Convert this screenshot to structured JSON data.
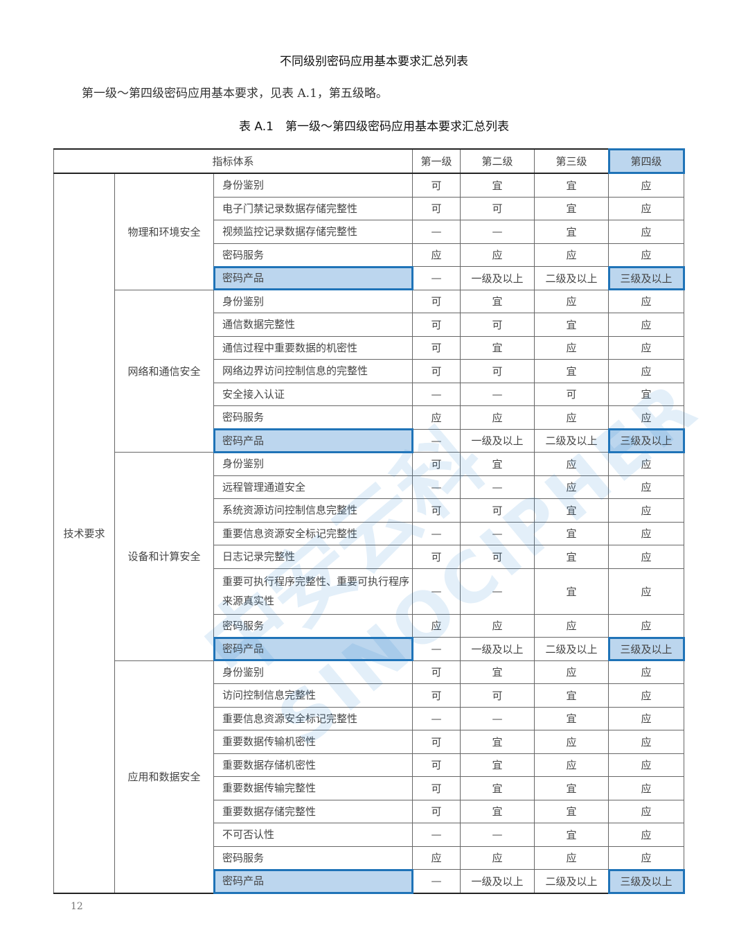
{
  "title": "不同级别密码应用基本要求汇总列表",
  "intro": "第一级～第四级密码应用基本要求，见表 A.1，第五级略。",
  "table_caption": "表 A.1　第一级～第四级密码应用基本要求汇总列表",
  "table": {
    "headers": [
      "指标体系",
      "第一级",
      "第二级",
      "第三级",
      "第四级"
    ],
    "category": "技术要求",
    "sections": [
      {
        "name": "物理和环境安全",
        "rows": [
          [
            "身份鉴别",
            "可",
            "宜",
            "宜",
            "应"
          ],
          [
            "电子门禁记录数据存储完整性",
            "可",
            "可",
            "宜",
            "应"
          ],
          [
            "视频监控记录数据存储完整性",
            "—",
            "—",
            "宜",
            "应"
          ],
          [
            "密码服务",
            "应",
            "应",
            "应",
            "应"
          ],
          [
            "密码产品",
            "—",
            "一级及以上",
            "二级及以上",
            "三级及以上"
          ]
        ]
      },
      {
        "name": "网络和通信安全",
        "rows": [
          [
            "身份鉴别",
            "可",
            "宜",
            "应",
            "应"
          ],
          [
            "通信数据完整性",
            "可",
            "可",
            "宜",
            "应"
          ],
          [
            "通信过程中重要数据的机密性",
            "可",
            "宜",
            "应",
            "应"
          ],
          [
            "网络边界访问控制信息的完整性",
            "可",
            "可",
            "宜",
            "应"
          ],
          [
            "安全接入认证",
            "—",
            "—",
            "可",
            "宜"
          ],
          [
            "密码服务",
            "应",
            "应",
            "应",
            "应"
          ],
          [
            "密码产品",
            "—",
            "一级及以上",
            "二级及以上",
            "三级及以上"
          ]
        ]
      },
      {
        "name": "设备和计算安全",
        "rows": [
          [
            "身份鉴别",
            "可",
            "宜",
            "应",
            "应"
          ],
          [
            "远程管理通道安全",
            "—",
            "—",
            "应",
            "应"
          ],
          [
            "系统资源访问控制信息完整性",
            "可",
            "可",
            "宜",
            "应"
          ],
          [
            "重要信息资源安全标记完整性",
            "—",
            "—",
            "宜",
            "应"
          ],
          [
            "日志记录完整性",
            "可",
            "可",
            "宜",
            "应"
          ],
          [
            "重要可执行程序完整性、重要可执行程序来源真实性",
            "—",
            "—",
            "宜",
            "应"
          ],
          [
            "密码服务",
            "应",
            "应",
            "应",
            "应"
          ],
          [
            "密码产品",
            "—",
            "一级及以上",
            "二级及以上",
            "三级及以上"
          ]
        ]
      },
      {
        "name": "应用和数据安全",
        "rows": [
          [
            "身份鉴别",
            "可",
            "宜",
            "应",
            "应"
          ],
          [
            "访问控制信息完整性",
            "可",
            "可",
            "宜",
            "应"
          ],
          [
            "重要信息资源安全标记完整性",
            "—",
            "—",
            "宜",
            "应"
          ],
          [
            "重要数据传输机密性",
            "可",
            "宜",
            "应",
            "应"
          ],
          [
            "重要数据存储机密性",
            "可",
            "宜",
            "应",
            "应"
          ],
          [
            "重要数据传输完整性",
            "可",
            "宜",
            "宜",
            "应"
          ],
          [
            "重要数据存储完整性",
            "可",
            "宜",
            "宜",
            "应"
          ],
          [
            "不可否认性",
            "—",
            "—",
            "宜",
            "应"
          ],
          [
            "密码服务",
            "应",
            "应",
            "应",
            "应"
          ],
          [
            "密码产品",
            "—",
            "一级及以上",
            "二级及以上",
            "三级及以上"
          ]
        ]
      }
    ]
  },
  "highlight_row": "密码产品",
  "colors": {
    "highlight_fill": "#bcd6ee",
    "highlight_border": "#1f73b7"
  },
  "watermark": {
    "line1": "中安云科",
    "line2": "SINOCIPHER"
  },
  "page_number": "12"
}
